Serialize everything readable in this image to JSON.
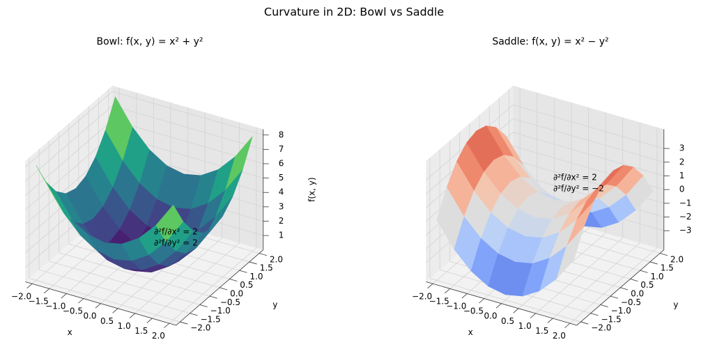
{
  "title": "Curvature in 2D: Bowl vs Saddle",
  "chart_data": [
    {
      "type": "surface3d",
      "title": "Bowl: f(x, y) = x² + y²",
      "colormap": "viridis",
      "x": [
        -2,
        -1.5,
        -1,
        -0.5,
        0,
        0.5,
        1,
        1.5,
        2
      ],
      "y": [
        -2,
        -1.5,
        -1,
        -0.5,
        0,
        0.5,
        1,
        1.5,
        2
      ],
      "z": [
        [
          8,
          6.25,
          5,
          4.25,
          4,
          4.25,
          5,
          6.25,
          8
        ],
        [
          6.25,
          4.5,
          3.25,
          2.5,
          2.25,
          2.5,
          3.25,
          4.5,
          6.25
        ],
        [
          5,
          3.25,
          2,
          1.25,
          1,
          1.25,
          2,
          3.25,
          5
        ],
        [
          4.25,
          2.5,
          1.25,
          0.5,
          0.25,
          0.5,
          1.25,
          2.5,
          4.25
        ],
        [
          4,
          2.25,
          1,
          0.25,
          0,
          0.25,
          1,
          2.25,
          4
        ],
        [
          4.25,
          2.5,
          1.25,
          0.5,
          0.25,
          0.5,
          1.25,
          2.5,
          4.25
        ],
        [
          5,
          3.25,
          2,
          1.25,
          1,
          1.25,
          2,
          3.25,
          5
        ],
        [
          6.25,
          4.5,
          3.25,
          2.5,
          2.25,
          2.5,
          3.25,
          4.5,
          6.25
        ],
        [
          8,
          6.25,
          5,
          4.25,
          4,
          4.25,
          5,
          6.25,
          8
        ]
      ],
      "xlim": [
        -2.2,
        2.2
      ],
      "ylim": [
        -2.2,
        2.2
      ],
      "zlim": [
        0,
        8.4
      ],
      "xticks": [
        {
          "value": -2,
          "label": "−2.0"
        },
        {
          "value": -1.5,
          "label": "−1.5"
        },
        {
          "value": -1,
          "label": "−1.0"
        },
        {
          "value": -0.5,
          "label": "−0.5"
        },
        {
          "value": 0,
          "label": "0.0"
        },
        {
          "value": 0.5,
          "label": "0.5"
        },
        {
          "value": 1,
          "label": "1.0"
        },
        {
          "value": 1.5,
          "label": "1.5"
        },
        {
          "value": 2,
          "label": "2.0"
        }
      ],
      "yticks": [
        {
          "value": -2,
          "label": "−2.0"
        },
        {
          "value": -1.5,
          "label": "−1.5"
        },
        {
          "value": -1,
          "label": "−1.0"
        },
        {
          "value": -0.5,
          "label": "−0.5"
        },
        {
          "value": 0,
          "label": "0.0"
        },
        {
          "value": 0.5,
          "label": "0.5"
        },
        {
          "value": 1,
          "label": "1.0"
        },
        {
          "value": 1.5,
          "label": "1.5"
        },
        {
          "value": 2,
          "label": "2.0"
        }
      ],
      "zticks": [
        1,
        2,
        3,
        4,
        5,
        6,
        7,
        8
      ],
      "xlabel": "x",
      "ylabel": "y",
      "zlabel": "f(x, y)",
      "annotation": [
        "∂²f/∂x² = 2",
        "∂²f/∂y² = 2"
      ]
    },
    {
      "type": "surface3d",
      "title": "Saddle: f(x, y) = x² − y²",
      "colormap": "coolwarm",
      "x": [
        -2,
        -1.5,
        -1,
        -0.5,
        0,
        0.5,
        1,
        1.5,
        2
      ],
      "y": [
        -2,
        -1.5,
        -1,
        -0.5,
        0,
        0.5,
        1,
        1.5,
        2
      ],
      "z": [
        [
          0,
          1.75,
          3,
          3.75,
          4,
          3.75,
          3,
          1.75,
          0
        ],
        [
          -1.75,
          0,
          1.25,
          2,
          2.25,
          2,
          1.25,
          0,
          -1.75
        ],
        [
          -3,
          -1.25,
          0,
          0.75,
          1,
          0.75,
          0,
          -1.25,
          -3
        ],
        [
          -3.75,
          -2,
          -0.75,
          0,
          0.25,
          0,
          -0.75,
          -2,
          -3.75
        ],
        [
          -4,
          -2.25,
          -1,
          -0.25,
          0,
          -0.25,
          -1,
          -2.25,
          -4
        ],
        [
          -3.75,
          -2,
          -0.75,
          0,
          0.25,
          0,
          -0.75,
          -2,
          -3.75
        ],
        [
          -3,
          -1.25,
          0,
          0.75,
          1,
          0.75,
          0,
          -1.25,
          -3
        ],
        [
          -1.75,
          0,
          1.25,
          2,
          2.25,
          2,
          1.25,
          0,
          -1.75
        ],
        [
          0,
          1.75,
          3,
          3.75,
          4,
          3.75,
          3,
          1.75,
          0
        ]
      ],
      "xlim": [
        -2.2,
        2.2
      ],
      "ylim": [
        -2.2,
        2.2
      ],
      "zlim": [
        -4.4,
        4.4
      ],
      "xticks": [
        {
          "value": -2,
          "label": "−2.0"
        },
        {
          "value": -1.5,
          "label": "−1.5"
        },
        {
          "value": -1,
          "label": "−1.0"
        },
        {
          "value": -0.5,
          "label": "−0.5"
        },
        {
          "value": 0,
          "label": "0.0"
        },
        {
          "value": 0.5,
          "label": "0.5"
        },
        {
          "value": 1,
          "label": "1.0"
        },
        {
          "value": 1.5,
          "label": "1.5"
        },
        {
          "value": 2,
          "label": "2.0"
        }
      ],
      "yticks": [
        {
          "value": -2,
          "label": "−2.0"
        },
        {
          "value": -1.5,
          "label": "−1.5"
        },
        {
          "value": -1,
          "label": "−1.0"
        },
        {
          "value": -0.5,
          "label": "−0.5"
        },
        {
          "value": 0,
          "label": "0.0"
        },
        {
          "value": 0.5,
          "label": "0.5"
        },
        {
          "value": 1,
          "label": "1.0"
        },
        {
          "value": 1.5,
          "label": "1.5"
        },
        {
          "value": 2,
          "label": "2.0"
        }
      ],
      "zticks": [
        {
          "value": -3,
          "label": "−3"
        },
        {
          "value": -2,
          "label": "−2"
        },
        {
          "value": -1,
          "label": "−1"
        },
        0,
        1,
        2,
        3
      ],
      "xlabel": "x",
      "ylabel": "y",
      "annotation": [
        "∂²f/∂x² = 2",
        "∂²f/∂y² = −2"
      ]
    }
  ]
}
